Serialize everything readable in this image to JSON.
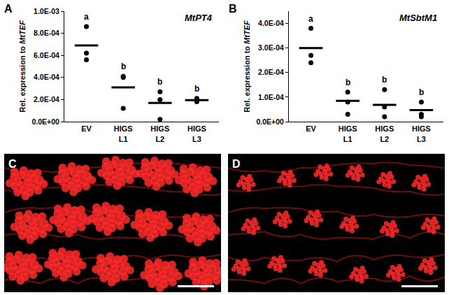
{
  "chart_data": [
    {
      "type": "scatter",
      "panel_label": "A",
      "annotation": "MtPT4",
      "ylabel": "Rel. expression to MtTEF",
      "categories": [
        "EV",
        "HIGS L1",
        "HIGS L2",
        "HIGS L3"
      ],
      "values": [
        [
          0.00086,
          0.00062,
          0.00056
        ],
        [
          0.00041,
          0.0004,
          0.00012
        ],
        [
          0.00027,
          0.0002,
          2e-05
        ],
        [
          0.00021,
          0.00019,
          0.00018
        ]
      ],
      "means": [
        0.00069,
        0.00031,
        0.00017,
        0.000195
      ],
      "group_letters": [
        "a",
        "b",
        "b",
        "b"
      ],
      "color": "#000000",
      "ylim": [
        0,
        0.001
      ],
      "yticks": [
        {
          "value": 0,
          "label": "0.0E+00"
        },
        {
          "value": 0.0002,
          "label": "2.0E-04"
        },
        {
          "value": 0.0004,
          "label": "4.0E-04"
        },
        {
          "value": 0.0006,
          "label": "6.0E-04"
        },
        {
          "value": 0.0008,
          "label": "8.0E-04"
        },
        {
          "value": 0.001,
          "label": "1.0E-03"
        }
      ],
      "grid": false
    },
    {
      "type": "scatter",
      "panel_label": "B",
      "annotation": "MtSbtM1",
      "ylabel": "Rel. expression to MtTEF",
      "categories": [
        "EV",
        "HIGS L1",
        "HIGS L2",
        "HIGS L3"
      ],
      "values": [
        [
          0.00038,
          0.00027,
          0.00024
        ],
        [
          0.00012,
          8e-05,
          3e-05
        ],
        [
          0.00013,
          6e-05,
          2e-05
        ],
        [
          8e-05,
          3e-05,
          2e-05
        ]
      ],
      "means": [
        0.0003,
        8.5e-05,
        6.8e-05,
        4.7e-05
      ],
      "group_letters": [
        "a",
        "b",
        "b",
        "b"
      ],
      "color": "#000000",
      "ylim": [
        0,
        0.00045
      ],
      "yticks": [
        {
          "value": 0,
          "label": "0.0E+00"
        },
        {
          "value": 0.0001,
          "label": "1.0E-04"
        },
        {
          "value": 0.0002,
          "label": "2.0E-04"
        },
        {
          "value": 0.0003,
          "label": "3.0E-04"
        },
        {
          "value": 0.0004,
          "label": "4.0E-04"
        }
      ],
      "grid": false
    }
  ],
  "images": [
    {
      "panel_label": "C"
    },
    {
      "panel_label": "D"
    }
  ]
}
